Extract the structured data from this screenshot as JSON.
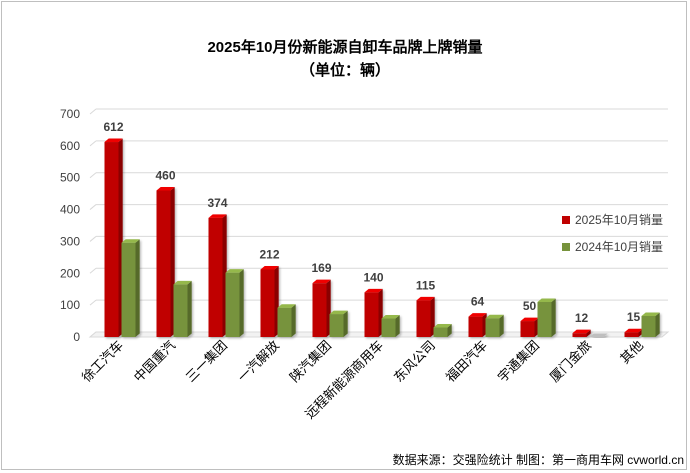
{
  "chart_data": {
    "type": "bar",
    "title": "2025年10月份新能源自卸车品牌上牌销量",
    "subtitle": "（单位：辆）",
    "categories": [
      "徐工汽车",
      "中国重汽",
      "三一集团",
      "一汽解放",
      "陕汽集团",
      "远程新能源商用车",
      "东风公司",
      "福田汽车",
      "宇通集团",
      "厦门金旅",
      "其他"
    ],
    "series": [
      {
        "name": "2025年10月销量",
        "color": "#c00000",
        "values": [
          612,
          460,
          374,
          212,
          169,
          140,
          115,
          64,
          50,
          12,
          15
        ]
      },
      {
        "name": "2024年10月销量",
        "color": "#77933c",
        "values": [
          296,
          165,
          202,
          92,
          72,
          58,
          30,
          59,
          110,
          0,
          66
        ]
      }
    ],
    "data_labels": [
      "612",
      "460",
      "374",
      "212",
      "169",
      "140",
      "115",
      "64",
      "50",
      "12",
      "15"
    ],
    "ylim": [
      0,
      700
    ],
    "yticks": [
      "0",
      "100",
      "200",
      "300",
      "400",
      "500",
      "600",
      "700"
    ],
    "grid": true,
    "legend_position": "right",
    "source": "数据来源：交强险统计  制图：第一商用车网 cvworld.cn"
  }
}
